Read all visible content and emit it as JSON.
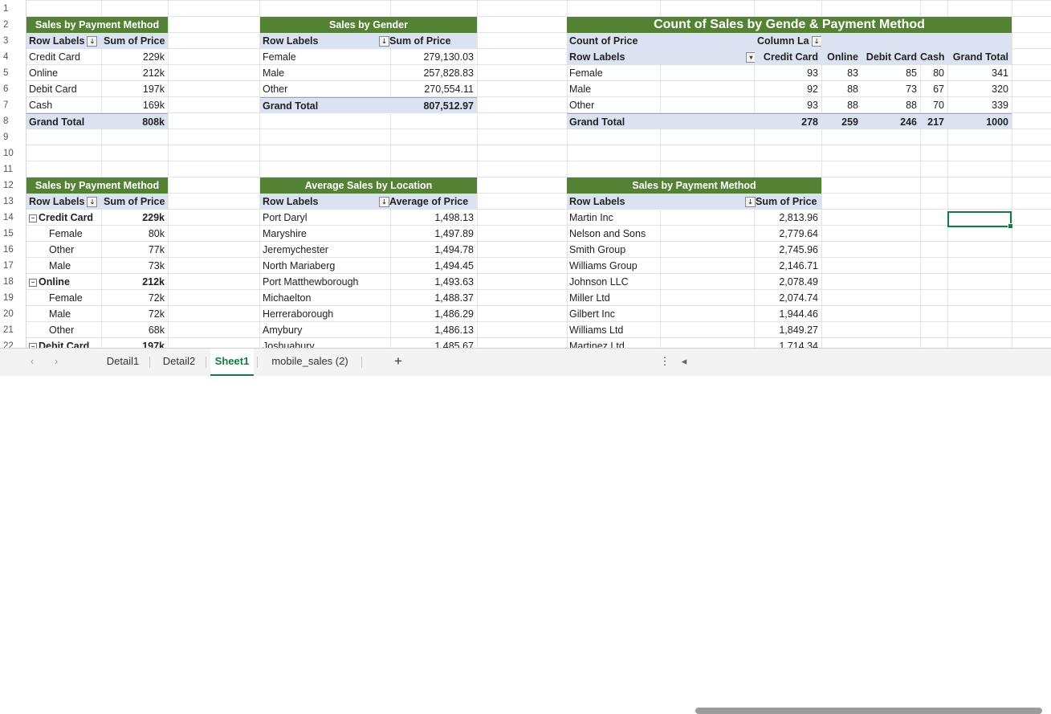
{
  "row_numbers": [
    "1",
    "2",
    "3",
    "4",
    "5",
    "6",
    "7",
    "8",
    "9",
    "10",
    "11",
    "12",
    "13",
    "14",
    "15",
    "16",
    "17",
    "18",
    "19",
    "20",
    "21",
    "22"
  ],
  "pivot1": {
    "title": "Sales by Payment Method",
    "col1": "Row Labels",
    "col2": "Sum of Price",
    "rows": [
      [
        "Credit Card",
        "229k"
      ],
      [
        "Online",
        "212k"
      ],
      [
        "Debit Card",
        "197k"
      ],
      [
        "Cash",
        "169k"
      ]
    ],
    "total": [
      "Grand Total",
      "808k"
    ]
  },
  "pivot2": {
    "title": "Sales by Gender",
    "col1": "Row Labels",
    "col2": "Sum of Price",
    "rows": [
      [
        "Female",
        "279,130.03"
      ],
      [
        "Male",
        "257,828.83"
      ],
      [
        "Other",
        "270,554.11"
      ]
    ],
    "total": [
      "Grand Total",
      "807,512.97"
    ]
  },
  "pivot3": {
    "title": "Count of Sales by Gende & Payment Method",
    "count_label": "Count of Price",
    "column_labels": "Column La",
    "row_labels": "Row Labels",
    "headers": [
      "Credit Card",
      "Online",
      "Debit Card",
      "Cash",
      "Grand Total"
    ],
    "rows": [
      [
        "Female",
        "93",
        "83",
        "85",
        "80",
        "341"
      ],
      [
        "Male",
        "92",
        "88",
        "73",
        "67",
        "320"
      ],
      [
        "Other",
        "93",
        "88",
        "88",
        "70",
        "339"
      ]
    ],
    "total": [
      "Grand Total",
      "278",
      "259",
      "246",
      "217",
      "1000"
    ]
  },
  "pivot4": {
    "title": "Sales by Payment Method",
    "col1": "Row Labels",
    "col2": "Sum of Price",
    "rows": [
      [
        "Credit Card",
        "229k",
        "group"
      ],
      [
        "Female",
        "80k",
        "child"
      ],
      [
        "Other",
        "77k",
        "child"
      ],
      [
        "Male",
        "73k",
        "child"
      ],
      [
        "Online",
        "212k",
        "group"
      ],
      [
        "Female",
        "72k",
        "child"
      ],
      [
        "Male",
        "72k",
        "child"
      ],
      [
        "Other",
        "68k",
        "child"
      ],
      [
        "Debit Card",
        "197k",
        "group"
      ]
    ]
  },
  "pivot5": {
    "title": "Average Sales by Location",
    "col1": "Row Labels",
    "col2": "Average of Price",
    "rows": [
      [
        "Port Daryl",
        "1,498.13"
      ],
      [
        "Maryshire",
        "1,497.89"
      ],
      [
        "Jeremychester",
        "1,494.78"
      ],
      [
        "North Mariaberg",
        "1,494.45"
      ],
      [
        "Port Matthewborough",
        "1,493.63"
      ],
      [
        "Michaelton",
        "1,488.37"
      ],
      [
        "Herreraborough",
        "1,486.29"
      ],
      [
        "Amybury",
        "1,486.13"
      ],
      [
        "Joshuabury",
        "1,485.67"
      ]
    ]
  },
  "pivot6": {
    "title": "Sales by Payment Method",
    "col1": "Row Labels",
    "col2": "Sum of Price",
    "rows": [
      [
        "Martin Inc",
        "2,813.96"
      ],
      [
        "Nelson and Sons",
        "2,779.64"
      ],
      [
        "Smith Group",
        "2,745.96"
      ],
      [
        "Williams Group",
        "2,146.71"
      ],
      [
        "Johnson LLC",
        "2,078.49"
      ],
      [
        "Miller Ltd",
        "2,074.74"
      ],
      [
        "Gilbert Inc",
        "1,944.46"
      ],
      [
        "Williams Ltd",
        "1,849.27"
      ],
      [
        "Martinez Ltd",
        "1,714.34"
      ]
    ]
  },
  "tabs": {
    "prev": "‹",
    "next": "›",
    "sheets": [
      "Detail1",
      "Detail2",
      "Sheet1",
      "mobile_sales (2)"
    ],
    "add": "+",
    "more": "⋮",
    "scroll_left": "◂"
  }
}
